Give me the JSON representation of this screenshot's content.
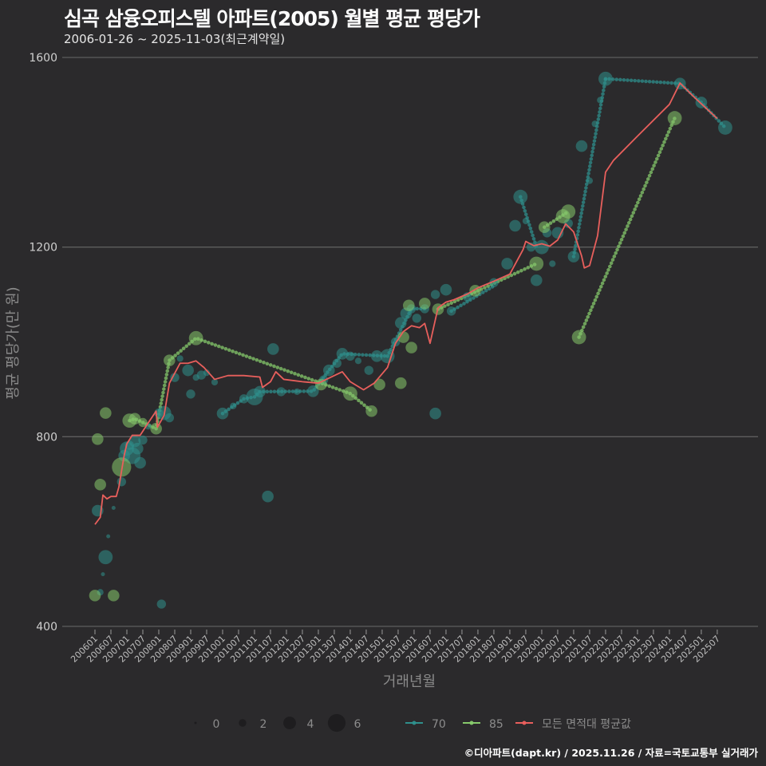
{
  "title": "심곡 삼융오피스텔 아파트(2005) 월별 평균 평당가",
  "subtitle": "2006-01-26 ~ 2025-11-03(최근계약일)",
  "caption": "©디아파트(dapt.kr) / 2025.11.26 / 자료=국토교통부 실거래가",
  "colors": {
    "bg": "#2b2a2c",
    "grid": "#5e5e5e",
    "s70": "#2f8f8c",
    "s85": "#86c96b",
    "avg": "#e85f5c"
  },
  "chart_data": {
    "type": "scatter",
    "title": "심곡 삼융오피스텔 아파트(2005) 월별 평균 평당가",
    "xlabel": "거래년월",
    "ylabel": "평균 평당가(만 원)",
    "ylim": [
      400,
      1600
    ],
    "yticks": [
      400,
      800,
      1200,
      1600
    ],
    "x_start": "200601",
    "xticks": [
      "200601",
      "200607",
      "200701",
      "200707",
      "200801",
      "200807",
      "200901",
      "200907",
      "201001",
      "201007",
      "201101",
      "201107",
      "201201",
      "201207",
      "201301",
      "201307",
      "201401",
      "201407",
      "201501",
      "201507",
      "201601",
      "201607",
      "201701",
      "201707",
      "201801",
      "201807",
      "201901",
      "201907",
      "202001",
      "202007",
      "202101",
      "202107",
      "202201",
      "202207",
      "202301",
      "202307",
      "202401",
      "202407",
      "202501",
      "202507"
    ],
    "grid": true,
    "legend": {
      "position": "bottom",
      "size_title": "",
      "sizes": [
        0,
        2,
        4,
        6
      ],
      "series": [
        "70",
        "85",
        "모든 면적대 평균값"
      ]
    },
    "series": [
      {
        "name": "70",
        "points_month_value_count": [
          [
            1,
            644,
            3
          ],
          [
            2,
            472,
            1
          ],
          [
            3,
            510,
            0
          ],
          [
            4,
            546,
            4
          ],
          [
            5,
            590,
            0
          ],
          [
            7,
            650,
            0
          ],
          [
            10,
            705,
            2
          ],
          [
            11,
            760,
            3
          ],
          [
            12,
            775,
            4
          ],
          [
            13,
            782,
            2
          ],
          [
            14,
            760,
            5
          ],
          [
            15,
            790,
            3
          ],
          [
            16,
            775,
            3
          ],
          [
            17,
            745,
            3
          ],
          [
            18,
            793,
            2
          ],
          [
            20,
            822,
            1
          ],
          [
            24,
            850,
            2
          ],
          [
            26,
            850,
            4
          ],
          [
            25,
            447,
            2
          ],
          [
            28,
            840,
            2
          ],
          [
            30,
            925,
            2
          ],
          [
            32,
            965,
            1
          ],
          [
            35,
            940,
            3
          ],
          [
            36,
            890,
            2
          ],
          [
            38,
            925,
            1
          ],
          [
            40,
            930,
            2
          ],
          [
            42,
            935,
            1
          ],
          [
            45,
            915,
            1
          ],
          [
            48,
            849,
            3
          ],
          [
            52,
            865,
            1
          ],
          [
            56,
            880,
            2
          ],
          [
            60,
            884,
            5
          ],
          [
            62,
            895,
            3
          ],
          [
            65,
            674,
            3
          ],
          [
            67,
            985,
            3
          ],
          [
            70,
            895,
            2
          ],
          [
            76,
            895,
            1
          ],
          [
            82,
            896,
            3
          ],
          [
            86,
            920,
            2
          ],
          [
            88,
            940,
            3
          ],
          [
            91,
            955,
            2
          ],
          [
            93,
            975,
            3
          ],
          [
            96,
            970,
            2
          ],
          [
            99,
            960,
            1
          ],
          [
            103,
            940,
            2
          ],
          [
            106,
            970,
            3
          ],
          [
            110,
            970,
            4
          ],
          [
            113,
            1000,
            2
          ],
          [
            115,
            1040,
            3
          ],
          [
            117,
            1060,
            3
          ],
          [
            119,
            1070,
            2
          ],
          [
            121,
            1050,
            2
          ],
          [
            124,
            1070,
            2
          ],
          [
            128,
            849,
            3
          ],
          [
            128,
            1100,
            2
          ],
          [
            132,
            1110,
            3
          ],
          [
            134,
            1065,
            2
          ],
          [
            140,
            1095,
            2
          ],
          [
            150,
            1125,
            2
          ],
          [
            155,
            1165,
            3
          ],
          [
            158,
            1245,
            3
          ],
          [
            160,
            1306,
            4
          ],
          [
            162,
            1255,
            1
          ],
          [
            164,
            1200,
            2
          ],
          [
            166,
            1130,
            3
          ],
          [
            168,
            1200,
            4
          ],
          [
            170,
            1230,
            2
          ],
          [
            172,
            1165,
            1
          ],
          [
            174,
            1230,
            3
          ],
          [
            178,
            1250,
            2
          ],
          [
            180,
            1180,
            3
          ],
          [
            183,
            1413,
            3
          ],
          [
            186,
            1340,
            1
          ],
          [
            188,
            1460,
            1
          ],
          [
            190,
            1510,
            1
          ],
          [
            192,
            1555,
            4
          ],
          [
            220,
            1545,
            3
          ],
          [
            228,
            1505,
            3
          ],
          [
            237,
            1452,
            4
          ]
        ],
        "lines": [
          [
            [
              48,
              849
            ],
            [
              56,
              880
            ],
            [
              60,
              884
            ],
            [
              62,
              895
            ],
            [
              82,
              896
            ],
            [
              88,
              940
            ],
            [
              93,
              975
            ],
            [
              110,
              970
            ]
          ],
          [
            [
              110,
              970
            ],
            [
              119,
              1070
            ],
            [
              124,
              1070
            ]
          ],
          [
            [
              134,
              1065
            ],
            [
              150,
              1118
            ]
          ],
          [
            [
              160,
              1306
            ],
            [
              166,
              1200
            ]
          ],
          [
            [
              180,
              1180
            ],
            [
              192,
              1555
            ]
          ],
          [
            [
              192,
              1555
            ],
            [
              220,
              1545
            ],
            [
              228,
              1505
            ],
            [
              237,
              1452
            ]
          ]
        ]
      },
      {
        "name": "85",
        "points_month_value_count": [
          [
            0,
            465,
            3
          ],
          [
            7,
            465,
            3
          ],
          [
            1,
            795,
            3
          ],
          [
            2,
            699,
            3
          ],
          [
            4,
            850,
            3
          ],
          [
            10,
            736,
            6
          ],
          [
            13,
            834,
            4
          ],
          [
            15,
            838,
            3
          ],
          [
            18,
            830,
            2
          ],
          [
            23,
            817,
            3
          ],
          [
            28,
            961,
            3
          ],
          [
            38,
            1008,
            4
          ],
          [
            85,
            910,
            3
          ],
          [
            96,
            891,
            4
          ],
          [
            104,
            854,
            3
          ],
          [
            107,
            910,
            3
          ],
          [
            115,
            913,
            3
          ],
          [
            116,
            1010,
            3
          ],
          [
            118,
            1077,
            3
          ],
          [
            119,
            988,
            3
          ],
          [
            124,
            1081,
            3
          ],
          [
            129,
            1069,
            3
          ],
          [
            143,
            1108,
            3
          ],
          [
            166,
            1165,
            4
          ],
          [
            169,
            1242,
            3
          ],
          [
            176,
            1265,
            4
          ],
          [
            178,
            1275,
            4
          ],
          [
            182,
            1010,
            4
          ],
          [
            218,
            1472,
            4
          ]
        ],
        "lines": [
          [
            [
              13,
              834
            ],
            [
              15,
              838
            ],
            [
              23,
              817
            ]
          ],
          [
            [
              23,
              817
            ],
            [
              28,
              961
            ],
            [
              38,
              1008
            ],
            [
              96,
              891
            ],
            [
              104,
              854
            ]
          ],
          [
            [
              129,
              1069
            ],
            [
              166,
              1165
            ]
          ],
          [
            [
              169,
              1242
            ],
            [
              178,
              1275
            ]
          ],
          [
            [
              182,
              1010
            ],
            [
              218,
              1472
            ]
          ]
        ]
      },
      {
        "name": "모든 면적대 평균값",
        "line": [
          [
            0,
            615
          ],
          [
            2,
            630
          ],
          [
            3,
            677
          ],
          [
            4.5,
            669
          ],
          [
            6,
            674
          ],
          [
            8,
            674
          ],
          [
            9,
            694
          ],
          [
            11,
            761
          ],
          [
            12,
            785
          ],
          [
            14,
            803
          ],
          [
            17,
            803
          ],
          [
            20,
            829
          ],
          [
            23,
            854
          ],
          [
            23.5,
            820
          ],
          [
            26,
            845
          ],
          [
            28,
            913
          ],
          [
            32,
            955
          ],
          [
            35,
            955
          ],
          [
            38,
            960
          ],
          [
            41,
            946
          ],
          [
            45,
            921
          ],
          [
            50,
            929
          ],
          [
            56,
            929
          ],
          [
            62,
            926
          ],
          [
            63,
            904
          ],
          [
            66,
            916
          ],
          [
            68,
            937
          ],
          [
            71,
            921
          ],
          [
            78,
            916
          ],
          [
            84,
            913
          ],
          [
            90,
            929
          ],
          [
            93,
            937
          ],
          [
            96,
            916
          ],
          [
            101,
            899
          ],
          [
            105,
            913
          ],
          [
            110,
            946
          ],
          [
            113,
            997
          ],
          [
            116,
            1022
          ],
          [
            119,
            1034
          ],
          [
            122,
            1030
          ],
          [
            124,
            1039
          ],
          [
            126,
            997
          ],
          [
            129,
            1072
          ],
          [
            132,
            1084
          ],
          [
            135,
            1089
          ],
          [
            140,
            1101
          ],
          [
            144,
            1114
          ],
          [
            150,
            1128
          ],
          [
            156,
            1143
          ],
          [
            161,
            1195
          ],
          [
            162,
            1212
          ],
          [
            165,
            1203
          ],
          [
            168,
            1207
          ],
          [
            171,
            1202
          ],
          [
            174,
            1215
          ],
          [
            177,
            1249
          ],
          [
            180,
            1232
          ],
          [
            183,
            1181
          ],
          [
            184,
            1156
          ],
          [
            186,
            1161
          ],
          [
            189,
            1224
          ],
          [
            192,
            1358
          ],
          [
            195,
            1383
          ],
          [
            204,
            1434
          ],
          [
            216,
            1501
          ],
          [
            220,
            1546
          ],
          [
            225,
            1518
          ],
          [
            234,
            1471
          ]
        ]
      }
    ]
  }
}
